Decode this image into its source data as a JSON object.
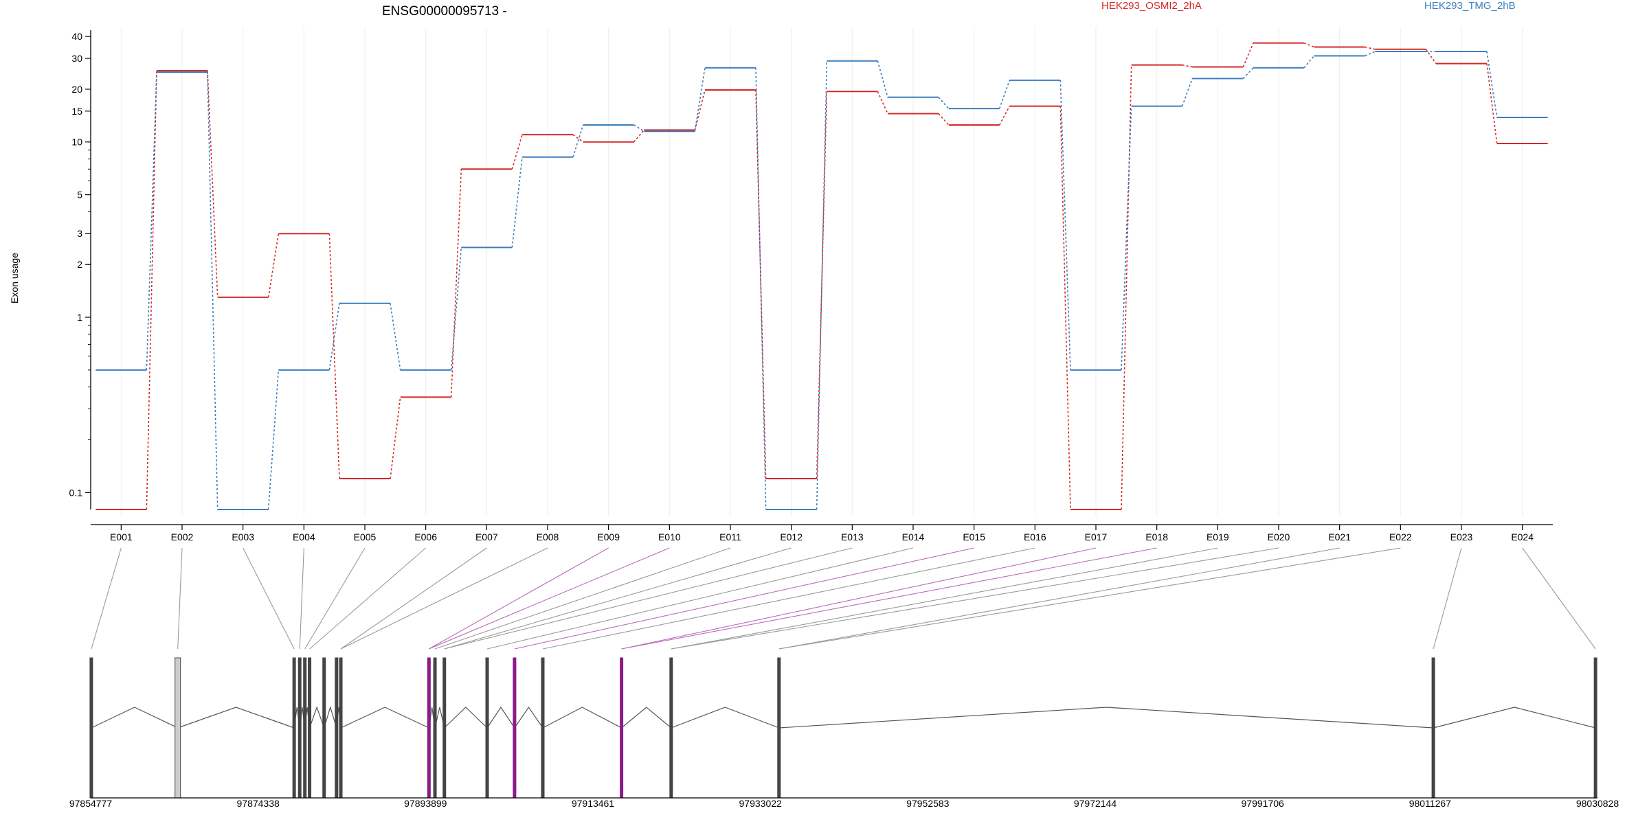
{
  "chart_data": {
    "type": "line",
    "title": "ENSG00000095713 -",
    "ylabel": "Exon usage",
    "xlabel": "",
    "yscale": "log",
    "ylim": [
      0.08,
      45
    ],
    "yticks": [
      "0.1",
      "1",
      "2",
      "3",
      "5",
      "10",
      "15",
      "20",
      "30",
      "40"
    ],
    "categories": [
      "E001",
      "E002",
      "E003",
      "E004",
      "E005",
      "E006",
      "E007",
      "E008",
      "E009",
      "E010",
      "E011",
      "E012",
      "E013",
      "E014",
      "E015",
      "E016",
      "E017",
      "E018",
      "E019",
      "E020",
      "E021",
      "E022",
      "E023",
      "E024"
    ],
    "series": [
      {
        "name": "HEK293_OSMI2_2hA",
        "color": "#d62728",
        "values": [
          0.08,
          25.5,
          1.3,
          3.0,
          0.12,
          0.35,
          7.0,
          11.0,
          10.0,
          11.7,
          19.8,
          0.12,
          19.4,
          14.5,
          12.5,
          16.0,
          0.08,
          27.5,
          26.8,
          36.7,
          34.8,
          33.8,
          28.0,
          9.8
        ]
      },
      {
        "name": "HEK293_TMG_2hB",
        "color": "#3a7ebf",
        "values": [
          0.5,
          25.0,
          0.08,
          0.5,
          1.2,
          0.5,
          2.5,
          8.2,
          12.5,
          11.5,
          26.5,
          0.08,
          29.0,
          18.0,
          15.5,
          22.5,
          0.5,
          16.0,
          23.0,
          26.5,
          31.0,
          32.8,
          32.8,
          13.8
        ]
      }
    ],
    "genomic_axis": {
      "ticks": [
        "97854777",
        "97874338",
        "97893899",
        "97913461",
        "97933022",
        "97952583",
        "97972144",
        "97991706",
        "98011267",
        "98030828"
      ],
      "exon_positions": [
        97854850,
        97864950,
        97878550,
        97879200,
        97879800,
        97880350,
        97882050,
        97883500,
        97884000,
        97894300,
        97895000,
        97896100,
        97901100,
        97904300,
        97907600,
        97916800,
        97922600,
        97935200,
        98011650,
        98030600
      ],
      "highlighted_exons": [
        97894300,
        97904300,
        97916800
      ]
    }
  }
}
